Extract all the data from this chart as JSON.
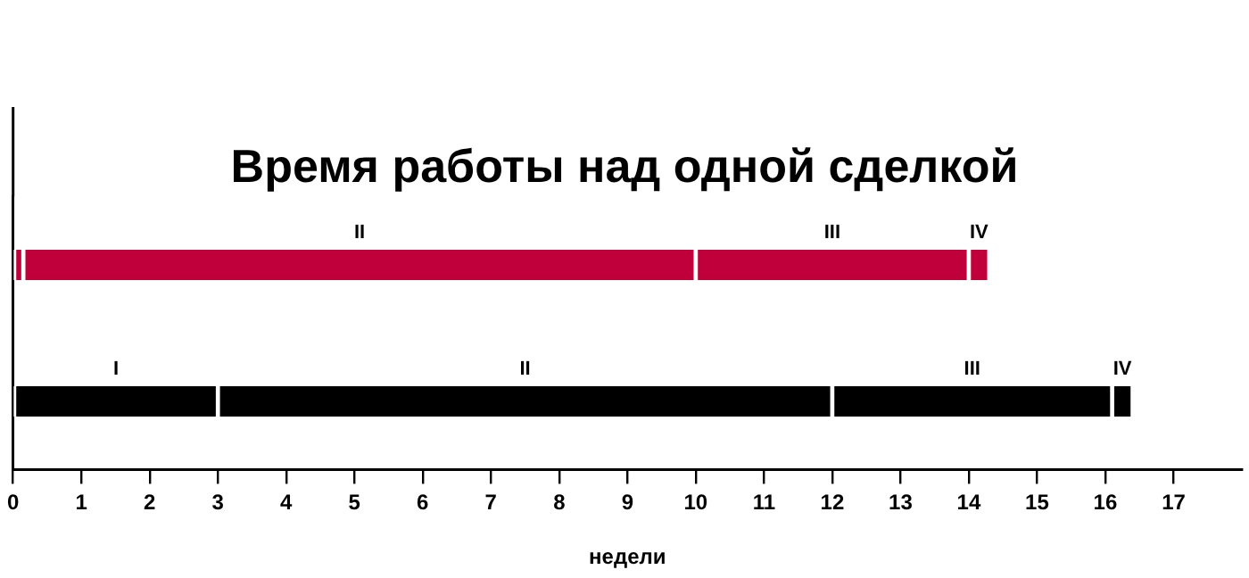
{
  "chart_data": {
    "type": "bar",
    "title": "Время работы над одной сделкой",
    "xlabel": "недели",
    "orientation": "horizontal",
    "stacked": true,
    "categories": [
      null,
      null
    ],
    "series": [
      {
        "colors": [
          "#c0003a",
          "#000000"
        ],
        "values": [
          0.15,
          3
        ],
        "value_labels": [
          null,
          "I"
        ]
      },
      {
        "colors": [
          "#c0003a",
          "#000000"
        ],
        "values": [
          9.85,
          9
        ],
        "value_labels": [
          "II",
          "II"
        ]
      },
      {
        "colors": [
          "#c0003a",
          "#000000"
        ],
        "values": [
          4,
          4.1
        ],
        "value_labels": [
          "III",
          "III"
        ]
      },
      {
        "colors": [
          "#c0003a",
          "#000000"
        ],
        "values": [
          0.3,
          0.3
        ],
        "value_labels": [
          "IV",
          "IV"
        ]
      }
    ],
    "xlim": [
      0,
      18
    ],
    "xticks": [
      0,
      1,
      2,
      3,
      4,
      5,
      6,
      7,
      8,
      9,
      10,
      11,
      12,
      13,
      14,
      15,
      16,
      17
    ],
    "grid": false,
    "legend": false
  }
}
